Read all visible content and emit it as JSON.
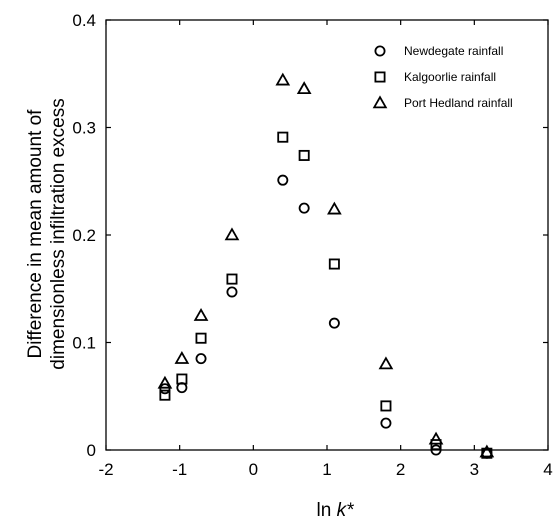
{
  "chart_data": {
    "type": "scatter",
    "xlabel_prefix": "ln ",
    "xlabel_var": "k*",
    "ylabel_lines": [
      "Difference in mean amount of",
      "dimensionless infiltration excess"
    ],
    "xlim": [
      -2,
      4
    ],
    "ylim": [
      0,
      0.4
    ],
    "x_ticks": [
      -2,
      -1,
      0,
      1,
      2,
      3,
      4
    ],
    "y_ticks": [
      0,
      0.1,
      0.2,
      0.3,
      0.4
    ],
    "x_tick_labels": [
      "-2",
      "-1",
      "0",
      "1",
      "2",
      "3",
      "4"
    ],
    "y_tick_labels": [
      "0",
      "0.1",
      "0.2",
      "0.3",
      "0.4"
    ],
    "grid": false,
    "legend_position": "top-right",
    "series": [
      {
        "name": "Newdegate rainfall",
        "marker": "circle",
        "x": [
          -1.2,
          -0.97,
          -0.71,
          -0.29,
          0.4,
          0.69,
          1.1,
          1.8,
          2.48,
          3.17
        ],
        "y": [
          0.057,
          0.058,
          0.085,
          0.147,
          0.251,
          0.225,
          0.118,
          0.025,
          0.0,
          -0.003
        ]
      },
      {
        "name": "Kalgoorlie rainfall",
        "marker": "square",
        "x": [
          -1.2,
          -0.97,
          -0.71,
          -0.29,
          0.4,
          0.69,
          1.1,
          1.8,
          2.48,
          3.17
        ],
        "y": [
          0.051,
          0.066,
          0.104,
          0.159,
          0.291,
          0.274,
          0.173,
          0.041,
          0.005,
          -0.003
        ]
      },
      {
        "name": "Port Hedland rainfall",
        "marker": "triangle",
        "x": [
          -1.2,
          -0.97,
          -0.71,
          -0.29,
          0.4,
          0.69,
          1.1,
          1.8,
          2.48,
          3.17
        ],
        "y": [
          0.062,
          0.085,
          0.125,
          0.2,
          0.344,
          0.336,
          0.224,
          0.08,
          0.01,
          -0.002
        ]
      }
    ]
  }
}
